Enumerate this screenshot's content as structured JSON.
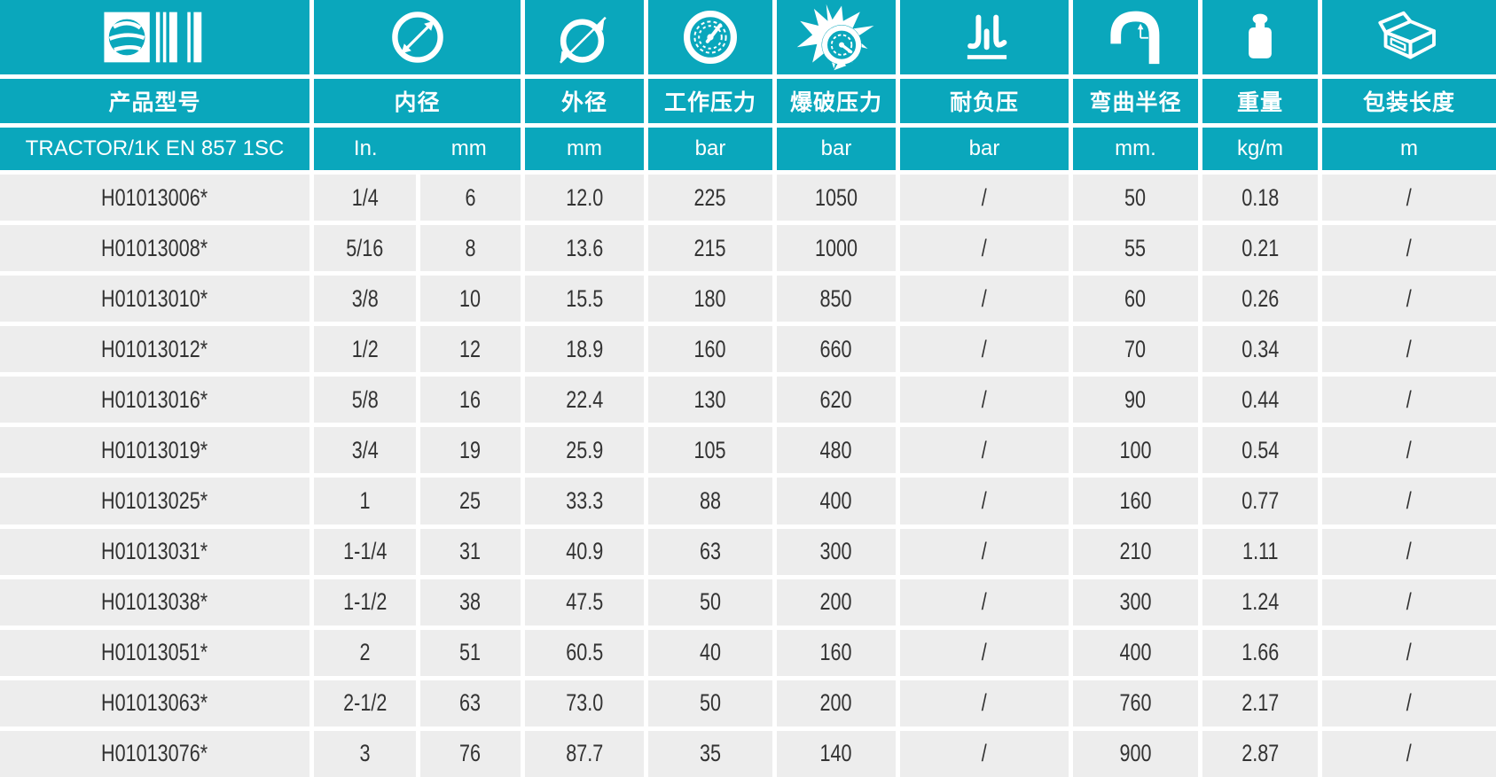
{
  "colors": {
    "accent": "#0aa7bc",
    "row_background": "#ededed",
    "text": "#333333",
    "header_text": "#ffffff"
  },
  "table": {
    "series_name": "TRACTOR/1K EN 857 1SC",
    "columns": [
      {
        "icon": "barcode-globe-icon",
        "label": "产品型号",
        "unit": "TRACTOR/1K EN 857 1SC"
      },
      {
        "icon": "inner-diameter-icon",
        "label": "内径",
        "unit_in": "In.",
        "unit_mm": "mm"
      },
      {
        "icon": "outer-diameter-icon",
        "label": "外径",
        "unit": "mm"
      },
      {
        "icon": "working-pressure-icon",
        "label": "工作压力",
        "unit": "bar"
      },
      {
        "icon": "burst-pressure-icon",
        "label": "爆破压力",
        "unit": "bar"
      },
      {
        "icon": "vacuum-icon",
        "label": "耐负压",
        "unit": "bar"
      },
      {
        "icon": "bend-radius-icon",
        "label": "弯曲半径",
        "unit": "mm."
      },
      {
        "icon": "weight-icon",
        "label": "重量",
        "unit": "kg/m"
      },
      {
        "icon": "package-length-icon",
        "label": "包装长度",
        "unit": "m"
      }
    ],
    "rows": [
      [
        "H01013006*",
        "1/4",
        "6",
        "12.0",
        "225",
        "1050",
        "/",
        "50",
        "0.18",
        "/"
      ],
      [
        "H01013008*",
        "5/16",
        "8",
        "13.6",
        "215",
        "1000",
        "/",
        "55",
        "0.21",
        "/"
      ],
      [
        "H01013010*",
        "3/8",
        "10",
        "15.5",
        "180",
        "850",
        "/",
        "60",
        "0.26",
        "/"
      ],
      [
        "H01013012*",
        "1/2",
        "12",
        "18.9",
        "160",
        "660",
        "/",
        "70",
        "0.34",
        "/"
      ],
      [
        "H01013016*",
        "5/8",
        "16",
        "22.4",
        "130",
        "620",
        "/",
        "90",
        "0.44",
        "/"
      ],
      [
        "H01013019*",
        "3/4",
        "19",
        "25.9",
        "105",
        "480",
        "/",
        "100",
        "0.54",
        "/"
      ],
      [
        "H01013025*",
        "1",
        "25",
        "33.3",
        "88",
        "400",
        "/",
        "160",
        "0.77",
        "/"
      ],
      [
        "H01013031*",
        "1-1/4",
        "31",
        "40.9",
        "63",
        "300",
        "/",
        "210",
        "1.11",
        "/"
      ],
      [
        "H01013038*",
        "1-1/2",
        "38",
        "47.5",
        "50",
        "200",
        "/",
        "300",
        "1.24",
        "/"
      ],
      [
        "H01013051*",
        "2",
        "51",
        "60.5",
        "40",
        "160",
        "/",
        "400",
        "1.66",
        "/"
      ],
      [
        "H01013063*",
        "2-1/2",
        "63",
        "73.0",
        "50",
        "200",
        "/",
        "760",
        "2.17",
        "/"
      ],
      [
        "H01013076*",
        "3",
        "76",
        "87.7",
        "35",
        "140",
        "/",
        "900",
        "2.87",
        "/"
      ]
    ]
  }
}
